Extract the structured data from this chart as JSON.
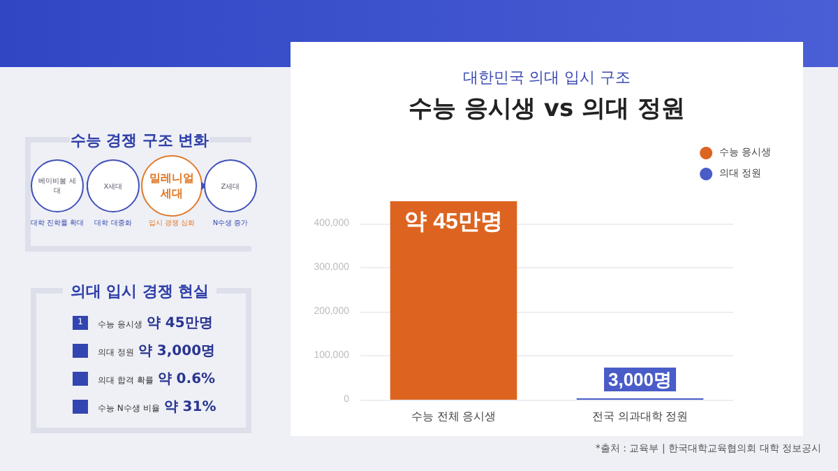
{
  "chart_data": {
    "type": "bar",
    "title": "수능 응시생 vs 의대 정원",
    "subtitle": "대한민국 의대 입시 구조",
    "categories": [
      "수능 전체 응시생",
      "전국 의과대학 정원"
    ],
    "series": [
      {
        "name": "수능 응시생",
        "color": "#dd6420",
        "values": [
          450000,
          null
        ],
        "value_labels": [
          "약 45만명",
          null
        ]
      },
      {
        "name": "의대 정원",
        "color": "#4a5cc8",
        "values": [
          null,
          3000
        ],
        "value_labels": [
          null,
          "3,000명"
        ]
      }
    ],
    "ylim": [
      0,
      450000
    ],
    "yticks": [
      0,
      {
        "value": 100000,
        "label": "100,000"
      },
      {
        "value": 200000,
        "label": "200,000"
      },
      {
        "value": 300000,
        "label": "300,000"
      },
      {
        "value": 400000,
        "label": "400,000"
      }
    ],
    "grid": "y",
    "legend": "top right",
    "annotations": [
      "수능 경쟁 구조 변화",
      "베이비붐 세대",
      "X세대",
      "밀레니얼 세대",
      "Z세대",
      "대학 진학률 확대",
      "대학 대중화",
      "입시 경쟁 심화",
      "N수생 증가",
      "의대 입시 경쟁 현실",
      "1",
      "수능 응시생",
      "약 45만명",
      "의대 정원",
      "약 3,000명",
      "의대 합격 확률",
      "약 0.6%",
      "수능 N수생 비율",
      "약 31%",
      "*출처 : 교육부 | 한국대학교육협의회 대학 정보공시"
    ]
  }
}
